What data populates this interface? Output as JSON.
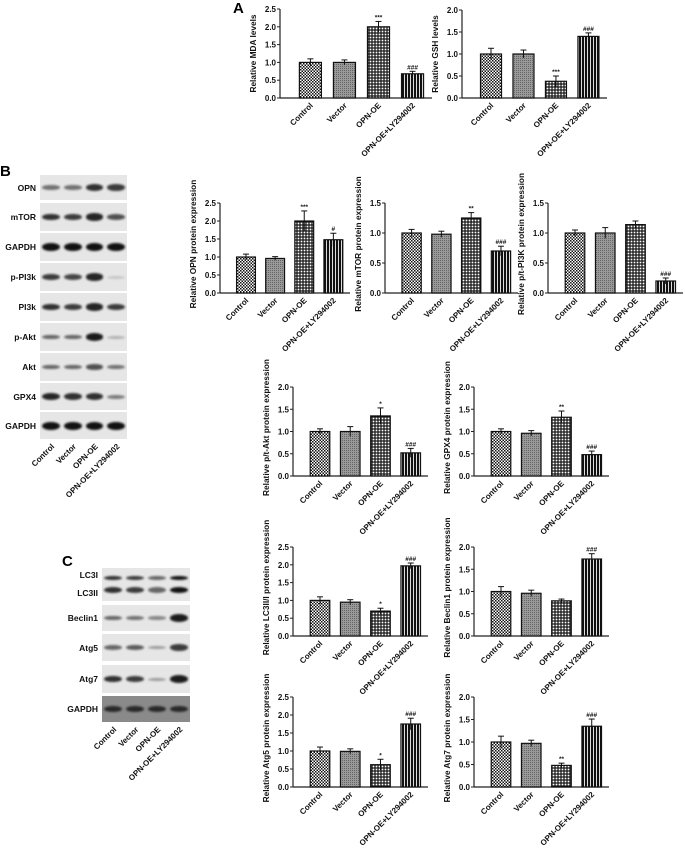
{
  "panels": {
    "a": "A",
    "b": "B",
    "c": "C"
  },
  "groups": [
    "Control",
    "Vector",
    "OPN-OE",
    "OPN-OE+LY294002"
  ],
  "blots": {
    "b": [
      {
        "label": "OPN",
        "intensity": [
          0.55,
          0.55,
          0.85,
          0.8
        ]
      },
      {
        "label": "mTOR",
        "intensity": [
          0.85,
          0.8,
          0.9,
          0.7
        ]
      },
      {
        "label": "GAPDH",
        "intensity": [
          1,
          1,
          1,
          1
        ]
      },
      {
        "label": "p-PI3k",
        "intensity": [
          0.8,
          0.75,
          0.9,
          0.15
        ]
      },
      {
        "label": "PI3k",
        "intensity": [
          0.85,
          0.8,
          0.9,
          0.8
        ]
      },
      {
        "label": "p-Akt",
        "intensity": [
          0.6,
          0.6,
          0.95,
          0.25
        ]
      },
      {
        "label": "Akt",
        "intensity": [
          0.6,
          0.6,
          0.7,
          0.55
        ]
      },
      {
        "label": "GPX4",
        "intensity": [
          0.9,
          0.85,
          0.85,
          0.5
        ]
      },
      {
        "label": "GAPDH",
        "intensity": [
          1,
          1,
          1,
          1
        ]
      }
    ],
    "c": [
      {
        "label": "LC3I",
        "label2": "LC3II",
        "intensity": [
          0.85,
          0.8,
          0.6,
          1
        ]
      },
      {
        "label": "Beclin1",
        "intensity": [
          0.6,
          0.55,
          0.45,
          0.95
        ]
      },
      {
        "label": "Atg5",
        "intensity": [
          0.6,
          0.65,
          0.35,
          0.8
        ]
      },
      {
        "label": "Atg7",
        "intensity": [
          0.85,
          0.8,
          0.35,
          0.95
        ]
      },
      {
        "label": "GAPDH",
        "intensity": [
          0.8,
          0.8,
          0.8,
          0.8
        ]
      }
    ]
  },
  "pattern_colors": {
    "bar_stroke": "#111111",
    "fill_dark": "#111111",
    "fill_light": "#ffffff",
    "blot_bg": "#e6e6e6"
  },
  "chart_data": [
    {
      "id": "mda",
      "type": "bar",
      "ylabel": "Relative MDA levels",
      "ylim": [
        0,
        2.5
      ],
      "yticks": [
        "0.0",
        "0.5",
        "1.0",
        "1.5",
        "2.0",
        "2.5"
      ],
      "categories": [
        "Control",
        "Vector",
        "OPN-OE",
        "OPN-OE+LY294002"
      ],
      "values": [
        1.0,
        1.0,
        2.0,
        0.68
      ],
      "errors": [
        0.1,
        0.07,
        0.15,
        0.07
      ],
      "significance": [
        "",
        "",
        "***",
        "###"
      ]
    },
    {
      "id": "gsh",
      "type": "bar",
      "ylabel": "Relative GSH levels",
      "ylim": [
        0,
        2.0
      ],
      "yticks": [
        "0.0",
        "0.5",
        "1.0",
        "1.5",
        "2.0"
      ],
      "categories": [
        "Control",
        "Vector",
        "OPN-OE",
        "OPN-OE+LY294002"
      ],
      "values": [
        1.0,
        1.0,
        0.38,
        1.4
      ],
      "errors": [
        0.13,
        0.09,
        0.12,
        0.08
      ],
      "significance": [
        "",
        "",
        "***",
        "###"
      ]
    },
    {
      "id": "opn",
      "type": "bar",
      "ylabel": "Relative OPN protein expression",
      "ylim": [
        0,
        2.5
      ],
      "yticks": [
        "0.0",
        "0.5",
        "1.0",
        "1.5",
        "2.0",
        "2.5"
      ],
      "categories": [
        "Control",
        "Vector",
        "OPN-OE",
        "OPN-OE+LY294002"
      ],
      "values": [
        1.0,
        0.96,
        2.0,
        1.48
      ],
      "errors": [
        0.08,
        0.05,
        0.28,
        0.18
      ],
      "significance": [
        "",
        "",
        "***",
        "#"
      ]
    },
    {
      "id": "mtor",
      "type": "bar",
      "ylabel": "Relative mTOR protein expression",
      "ylim": [
        0,
        1.5
      ],
      "yticks": [
        "0.0",
        "0.5",
        "1.0",
        "1.5"
      ],
      "categories": [
        "Control",
        "Vector",
        "OPN-OE",
        "OPN-OE+LY294002"
      ],
      "values": [
        1.0,
        0.98,
        1.25,
        0.7
      ],
      "errors": [
        0.06,
        0.05,
        0.09,
        0.08
      ],
      "significance": [
        "",
        "",
        "**",
        "###"
      ]
    },
    {
      "id": "pi3k",
      "type": "bar",
      "ylabel": "Relative p/t-PI3K protein expression",
      "ylim": [
        0,
        1.5
      ],
      "yticks": [
        "0.0",
        "0.5",
        "1.0",
        "1.5"
      ],
      "categories": [
        "Control",
        "Vector",
        "OPN-OE",
        "OPN-OE+LY294002"
      ],
      "values": [
        1.0,
        1.0,
        1.14,
        0.2
      ],
      "errors": [
        0.05,
        0.09,
        0.06,
        0.05
      ],
      "significance": [
        "",
        "",
        "",
        "###"
      ]
    },
    {
      "id": "akt",
      "type": "bar",
      "ylabel": "Relative p/t-Akt protein expression",
      "ylim": [
        0,
        2.0
      ],
      "yticks": [
        "0.0",
        "0.5",
        "1.0",
        "1.5",
        "2.0"
      ],
      "categories": [
        "Control",
        "Vector",
        "OPN-OE",
        "OPN-OE+LY294002"
      ],
      "values": [
        1.0,
        1.0,
        1.35,
        0.52
      ],
      "errors": [
        0.06,
        0.11,
        0.18,
        0.1
      ],
      "significance": [
        "",
        "",
        "*",
        "###"
      ]
    },
    {
      "id": "gpx4",
      "type": "bar",
      "ylabel": "Relative GPX4 protein expression",
      "ylim": [
        0,
        2.0
      ],
      "yticks": [
        "0.0",
        "0.5",
        "1.0",
        "1.5",
        "2.0"
      ],
      "categories": [
        "Control",
        "Vector",
        "OPN-OE",
        "OPN-OE+LY294002"
      ],
      "values": [
        1.0,
        0.96,
        1.32,
        0.48
      ],
      "errors": [
        0.06,
        0.06,
        0.14,
        0.08
      ],
      "significance": [
        "",
        "",
        "**",
        "###"
      ]
    },
    {
      "id": "lc3",
      "type": "bar",
      "ylabel": "Relative LC3II/I protein expression",
      "ylim": [
        0,
        2.5
      ],
      "yticks": [
        "0.0",
        "0.5",
        "1.0",
        "1.5",
        "2.0",
        "2.5"
      ],
      "categories": [
        "Control",
        "Vector",
        "OPN-OE",
        "OPN-OE+LY294002"
      ],
      "values": [
        1.0,
        0.95,
        0.7,
        1.97
      ],
      "errors": [
        0.1,
        0.07,
        0.08,
        0.08
      ],
      "significance": [
        "",
        "",
        "*",
        "###"
      ]
    },
    {
      "id": "beclin1",
      "type": "bar",
      "ylabel": "Relative Beclin1 protein expression",
      "ylim": [
        0,
        2.0
      ],
      "yticks": [
        "0.0",
        "0.5",
        "1.0",
        "1.5",
        "2.0"
      ],
      "categories": [
        "Control",
        "Vector",
        "OPN-OE",
        "OPN-OE+LY294002"
      ],
      "values": [
        1.0,
        0.96,
        0.79,
        1.73
      ],
      "errors": [
        0.11,
        0.07,
        0.04,
        0.12
      ],
      "significance": [
        "",
        "",
        "",
        "###"
      ]
    },
    {
      "id": "atg5",
      "type": "bar",
      "ylabel": "Relative Atg5 protein expression",
      "ylim": [
        0,
        2.5
      ],
      "yticks": [
        "0.0",
        "0.5",
        "1.0",
        "1.5",
        "2.0",
        "2.5"
      ],
      "categories": [
        "Control",
        "Vector",
        "OPN-OE",
        "OPN-OE+LY294002"
      ],
      "values": [
        1.0,
        0.99,
        0.62,
        1.75
      ],
      "errors": [
        0.11,
        0.07,
        0.15,
        0.16
      ],
      "significance": [
        "",
        "",
        "*",
        "###"
      ]
    },
    {
      "id": "atg7",
      "type": "bar",
      "ylabel": "Relative Atg7 protein expression",
      "ylim": [
        0,
        2.0
      ],
      "yticks": [
        "0.0",
        "0.5",
        "1.0",
        "1.5",
        "2.0"
      ],
      "categories": [
        "Control",
        "Vector",
        "OPN-OE",
        "OPN-OE+LY294002"
      ],
      "values": [
        1.0,
        0.97,
        0.48,
        1.35
      ],
      "errors": [
        0.13,
        0.07,
        0.05,
        0.16
      ],
      "significance": [
        "",
        "",
        "**",
        "###"
      ]
    }
  ]
}
